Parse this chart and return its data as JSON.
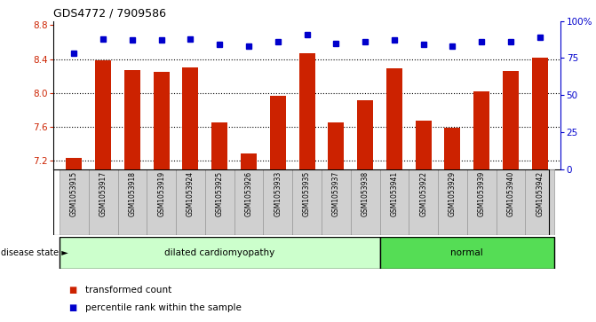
{
  "title": "GDS4772 / 7909586",
  "samples": [
    "GSM1053915",
    "GSM1053917",
    "GSM1053918",
    "GSM1053919",
    "GSM1053924",
    "GSM1053925",
    "GSM1053926",
    "GSM1053933",
    "GSM1053935",
    "GSM1053937",
    "GSM1053938",
    "GSM1053941",
    "GSM1053922",
    "GSM1053929",
    "GSM1053939",
    "GSM1053940",
    "GSM1053942"
  ],
  "bar_values": [
    7.23,
    8.38,
    8.27,
    8.25,
    8.3,
    7.65,
    7.28,
    7.97,
    8.47,
    7.65,
    7.91,
    8.29,
    7.67,
    7.59,
    8.02,
    8.26,
    8.42
  ],
  "percentile_values": [
    78,
    88,
    87,
    87,
    88,
    84,
    83,
    86,
    91,
    85,
    86,
    87,
    84,
    83,
    86,
    86,
    89
  ],
  "bar_color": "#cc2200",
  "percentile_color": "#0000cc",
  "ylim_left": [
    7.1,
    8.85
  ],
  "ylim_right": [
    0,
    100
  ],
  "yticks_left": [
    7.2,
    7.6,
    8.0,
    8.4,
    8.8
  ],
  "yticks_right": [
    0,
    25,
    50,
    75,
    100
  ],
  "ytick_labels_right": [
    "0",
    "25",
    "50",
    "75",
    "100%"
  ],
  "disease_groups": [
    {
      "label": "dilated cardiomyopathy",
      "start": 0,
      "end": 11,
      "color": "#ccffcc"
    },
    {
      "label": "normal",
      "start": 11,
      "end": 17,
      "color": "#55dd55"
    }
  ],
  "disease_state_label": "disease state",
  "legend_items": [
    {
      "label": "transformed count",
      "color": "#cc2200"
    },
    {
      "label": "percentile rank within the sample",
      "color": "#0000cc"
    }
  ],
  "bar_width": 0.55,
  "sample_box_color": "#d0d0d0",
  "sample_box_edge": "#888888"
}
